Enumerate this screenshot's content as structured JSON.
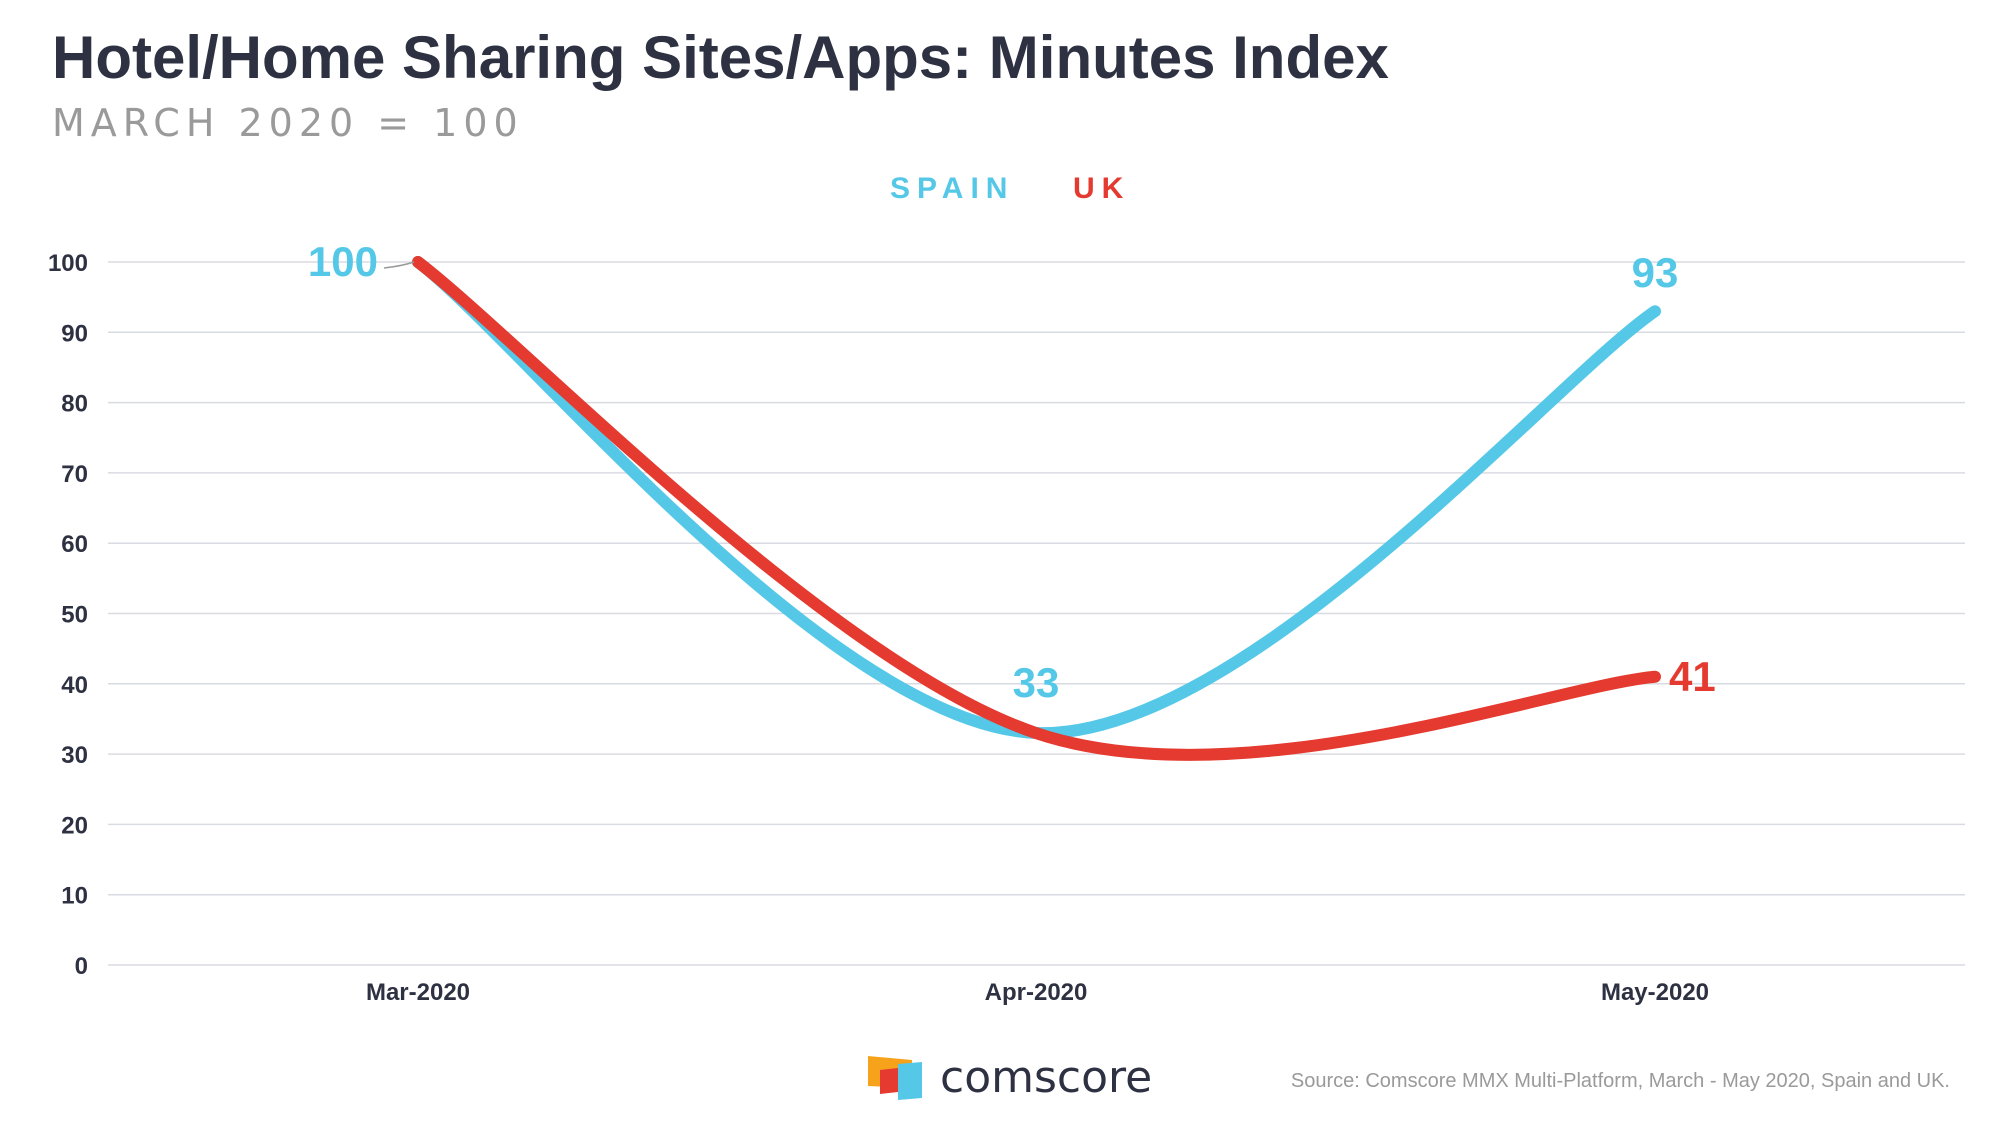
{
  "chart_data": {
    "type": "line",
    "title": "Hotel/Home Sharing Sites/Apps: Minutes Index",
    "subtitle": "MARCH 2020 = 100",
    "categories": [
      "Mar-2020",
      "Apr-2020",
      "May-2020"
    ],
    "series": [
      {
        "name": "SPAIN",
        "color": "#55c8e8",
        "values": [
          100,
          33,
          93
        ],
        "data_labels": [
          "100",
          "33",
          "93"
        ]
      },
      {
        "name": "UK",
        "color": "#e43a2f",
        "values": [
          100,
          33,
          41
        ],
        "data_labels": [
          "",
          "",
          "41"
        ]
      }
    ],
    "y_ticks": [
      "0",
      "10",
      "20",
      "30",
      "40",
      "50",
      "60",
      "70",
      "80",
      "90",
      "100"
    ],
    "ylim": [
      0,
      100
    ],
    "xlabel": "",
    "ylabel": "",
    "grid": true,
    "legend_position": "top-center"
  },
  "brand": {
    "name": "comscore",
    "logo_colors": [
      "#f7a21b",
      "#e43a2f",
      "#55c8e8"
    ]
  },
  "footer": {
    "source": "Source: Comscore MMX Multi-Platform, March - May 2020, Spain and UK."
  }
}
